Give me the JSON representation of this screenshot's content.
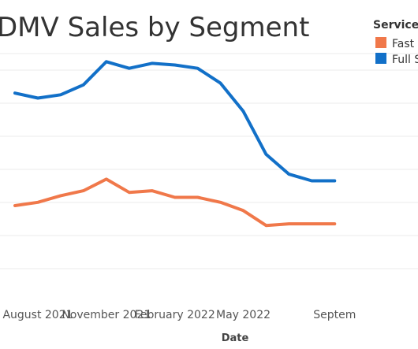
{
  "chart_data": {
    "type": "line",
    "title": "DMV Sales by Segment",
    "xlabel": "Date",
    "ylabel": "",
    "x": [
      "2021-07",
      "2021-08",
      "2021-09",
      "2021-10",
      "2021-11",
      "2021-12",
      "2022-01",
      "2022-02",
      "2022-03",
      "2022-04",
      "2022-05",
      "2022-06",
      "2022-07",
      "2022-08",
      "2022-09"
    ],
    "x_ticks": [
      {
        "x": "2021-08",
        "label": "August 2021"
      },
      {
        "x": "2021-11",
        "label": "November 2021"
      },
      {
        "x": "2022-02",
        "label": "February 2022"
      },
      {
        "x": "2022-05",
        "label": "May 2022"
      },
      {
        "x": "2022-09",
        "label": "Septem"
      }
    ],
    "legend": {
      "title": "Service",
      "placement": "top-right",
      "entries": [
        "Fast",
        "Full S"
      ]
    },
    "grid": true,
    "series": [
      {
        "name": "Fast",
        "color": "#f0784a",
        "values": [
          44,
          44.2,
          44.6,
          44.9,
          45.6,
          44.8,
          44.9,
          44.5,
          44.5,
          44.2,
          43.7,
          42.8,
          42.9,
          42.9,
          42.9
        ]
      },
      {
        "name": "Full S",
        "color": "#1270c8",
        "values": [
          50.8,
          50.5,
          50.7,
          51.3,
          52.7,
          52.3,
          52.6,
          52.5,
          52.3,
          51.4,
          49.7,
          47.1,
          45.9,
          45.5,
          45.5
        ]
      }
    ]
  }
}
